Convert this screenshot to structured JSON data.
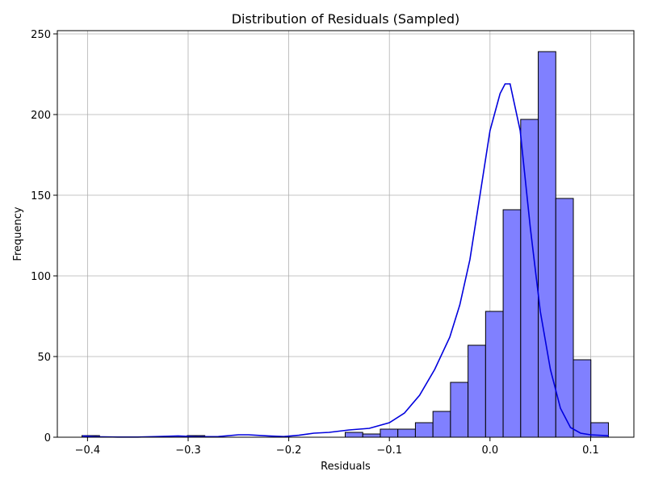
{
  "chart_data": {
    "type": "bar",
    "title": "Distribution of Residuals (Sampled)",
    "xlabel": "Residuals",
    "ylabel": "Frequency",
    "xlim": [
      -0.43,
      0.143
    ],
    "ylim": [
      0,
      252
    ],
    "xticks": [
      -0.4,
      -0.3,
      -0.2,
      -0.1,
      0.0,
      0.1
    ],
    "xtick_labels": [
      "−0.4",
      "−0.3",
      "−0.2",
      "−0.1",
      "0.0",
      "0.1"
    ],
    "yticks": [
      0,
      50,
      100,
      150,
      200,
      250
    ],
    "ytick_labels": [
      "0",
      "50",
      "100",
      "150",
      "200",
      "250"
    ],
    "grid": true,
    "bar_color": "#8080ff",
    "edge_color": "#000000",
    "kde_color": "#0000dd",
    "bin_start": -0.4055,
    "bin_width": 0.01744,
    "values": [
      1,
      0,
      0,
      0,
      0,
      0,
      1,
      0,
      0,
      0,
      0,
      0,
      0,
      0,
      0,
      3,
      2,
      5,
      5,
      9,
      16,
      34,
      57,
      78,
      141,
      197,
      239,
      148,
      48,
      9
    ],
    "kde": {
      "x": [
        -0.405,
        -0.39,
        -0.37,
        -0.35,
        -0.33,
        -0.31,
        -0.29,
        -0.27,
        -0.25,
        -0.24,
        -0.22,
        -0.205,
        -0.19,
        -0.175,
        -0.16,
        -0.14,
        -0.12,
        -0.1,
        -0.085,
        -0.07,
        -0.055,
        -0.04,
        -0.03,
        -0.02,
        -0.01,
        0.0,
        0.01,
        0.015,
        0.02,
        0.03,
        0.04,
        0.05,
        0.06,
        0.07,
        0.08,
        0.09,
        0.1,
        0.118
      ],
      "y": [
        0.8,
        0.3,
        0.1,
        0.1,
        0.4,
        0.8,
        0.3,
        0.4,
        1.5,
        1.5,
        0.8,
        0.4,
        1.2,
        2.5,
        3.0,
        4.5,
        5.5,
        9,
        15,
        26,
        42,
        62,
        82,
        110,
        150,
        190,
        213,
        219,
        219,
        190,
        130,
        78,
        42,
        18,
        6,
        2.5,
        1.5,
        0.9
      ]
    }
  }
}
